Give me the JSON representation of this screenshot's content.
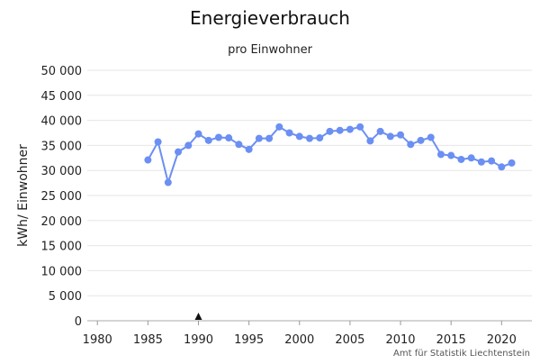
{
  "chart_data": {
    "type": "line",
    "title": "Energieverbrauch",
    "subtitle": "pro Einwohner",
    "ylabel": "kWh/ Einwohner",
    "xlabel": "",
    "source": "Amt für Statistik Liechtenstein",
    "xlim": [
      1979,
      2023
    ],
    "ylim": [
      0,
      50000
    ],
    "x_ticks": [
      1980,
      1985,
      1990,
      1995,
      2000,
      2005,
      2010,
      2015,
      2020
    ],
    "y_ticks": [
      0,
      5000,
      10000,
      15000,
      20000,
      25000,
      30000,
      35000,
      40000,
      45000,
      50000
    ],
    "y_tick_labels": [
      "0",
      "5 000",
      "10 000",
      "15 000",
      "20 000",
      "25 000",
      "30 000",
      "35 000",
      "40 000",
      "45 000",
      "50 000"
    ],
    "grid": "horizontal",
    "marker_year": 1990,
    "marker_symbol": "▲",
    "series": [
      {
        "color": "#6b8ff2",
        "x": [
          1985,
          1986,
          1987,
          1988,
          1989,
          1990,
          1991,
          1992,
          1993,
          1994,
          1995,
          1996,
          1997,
          1998,
          1999,
          2000,
          2001,
          2002,
          2003,
          2004,
          2005,
          2006,
          2007,
          2008,
          2009,
          2010,
          2011,
          2012,
          2013,
          2014,
          2015,
          2016,
          2017,
          2018,
          2019,
          2020,
          2021
        ],
        "values": [
          32100,
          35700,
          27600,
          33700,
          35000,
          37300,
          36000,
          36600,
          36500,
          35200,
          34200,
          36400,
          36400,
          38700,
          37500,
          36800,
          36400,
          36500,
          37800,
          38000,
          38200,
          38700,
          35900,
          37800,
          36800,
          37100,
          35200,
          36000,
          36600,
          33200,
          33000,
          32200,
          32500,
          31700,
          31900,
          30700,
          31500
        ]
      }
    ]
  }
}
